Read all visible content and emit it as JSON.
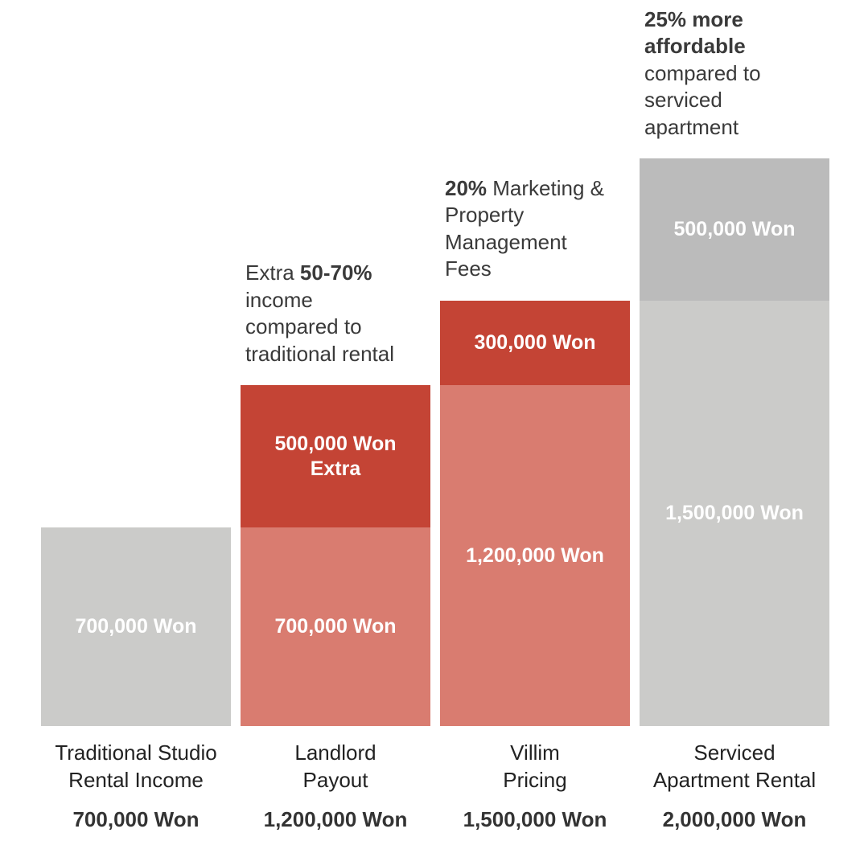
{
  "colors": {
    "traditional": "#cbcbc9",
    "payout_base": "#d97c70",
    "payout_extra": "#c44435",
    "fee": "#c44435",
    "serviced_base": "#cbcbc9",
    "serviced_premium": "#bbbbbb"
  },
  "chart_data": {
    "type": "bar",
    "stacked": true,
    "title": "",
    "xlabel": "",
    "ylabel": "",
    "ylim": [
      0,
      2000000
    ],
    "grid": false,
    "categories": [
      {
        "label": [
          "Traditional Studio",
          "Rental Income"
        ],
        "total": 700000,
        "total_label": "700,000 Won"
      },
      {
        "label": [
          "Landlord",
          "Payout"
        ],
        "total": 1200000,
        "total_label": "1,200,000 Won"
      },
      {
        "label": [
          "Villim",
          "Pricing"
        ],
        "total": 1500000,
        "total_label": "1,500,000 Won"
      },
      {
        "label": [
          "Serviced",
          "Apartment Rental"
        ],
        "total": 2000000,
        "total_label": "2,000,000 Won"
      }
    ],
    "segments": [
      [
        {
          "value": 700000,
          "label": [
            "700,000 Won"
          ],
          "color_key": "traditional"
        }
      ],
      [
        {
          "value": 700000,
          "label": [
            "700,000 Won"
          ],
          "color_key": "payout_base"
        },
        {
          "value": 500000,
          "label": [
            "500,000 Won",
            "Extra"
          ],
          "color_key": "payout_extra"
        }
      ],
      [
        {
          "value": 1200000,
          "label": [
            "1,200,000 Won"
          ],
          "color_key": "payout_base"
        },
        {
          "value": 300000,
          "label": [
            "300,000 Won"
          ],
          "color_key": "fee"
        }
      ],
      [
        {
          "value": 1500000,
          "label": [
            "1,500,000 Won"
          ],
          "color_key": "serviced_base"
        },
        {
          "value": 500000,
          "label": [
            "500,000 Won"
          ],
          "color_key": "serviced_premium"
        }
      ]
    ],
    "annotations": [
      null,
      [
        [
          {
            "t": "Extra "
          },
          {
            "t": "50-70%",
            "b": true
          }
        ],
        [
          {
            "t": "income"
          }
        ],
        [
          {
            "t": "compared to"
          }
        ],
        [
          {
            "t": "traditional rental"
          }
        ]
      ],
      [
        [
          {
            "t": "20%",
            "b": true
          },
          {
            "t": " Marketing &"
          }
        ],
        [
          {
            "t": "Property"
          }
        ],
        [
          {
            "t": "Management"
          }
        ],
        [
          {
            "t": "Fees"
          }
        ]
      ],
      [
        [
          {
            "t": "25% more",
            "b": true
          }
        ],
        [
          {
            "t": "affordable",
            "b": true
          }
        ],
        [
          {
            "t": "compared to"
          }
        ],
        [
          {
            "t": "serviced"
          }
        ],
        [
          {
            "t": "apartment"
          }
        ]
      ]
    ]
  }
}
